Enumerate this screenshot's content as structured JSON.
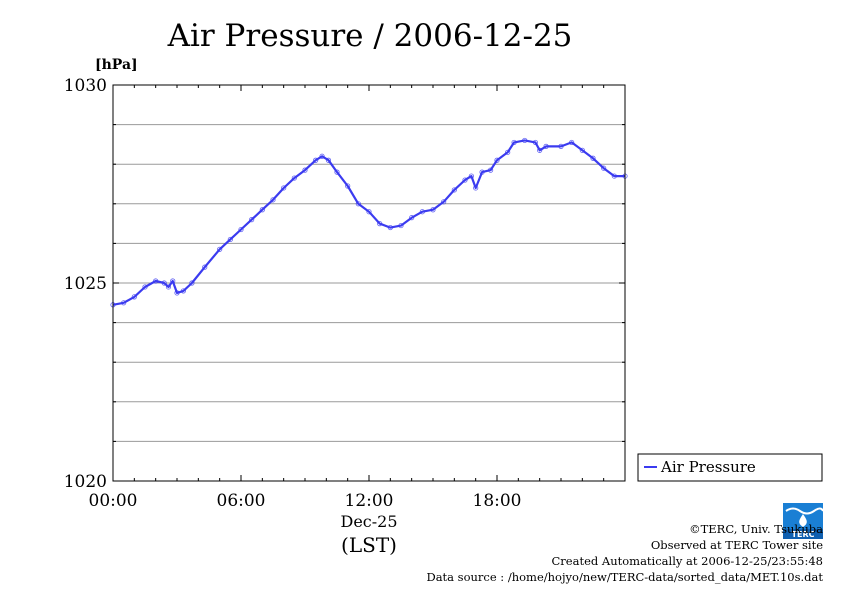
{
  "chart_data": {
    "type": "line",
    "title": "Air Pressure / 2006-12-25",
    "ylabel": "[hPa]",
    "ylim": [
      1020,
      1030
    ],
    "y_ticks": [
      "1020",
      "1025",
      "1030"
    ],
    "xlim": [
      0,
      24
    ],
    "x_ticks": [
      {
        "hour": 0,
        "label": "00:00"
      },
      {
        "hour": 6,
        "label": "06:00"
      },
      {
        "hour": 12,
        "label": "12:00"
      },
      {
        "hour": 18,
        "label": "18:00"
      }
    ],
    "x_date_label": "Dec-25",
    "x_unit_label": "(LST)",
    "grid": true,
    "legend_position": "right",
    "color": "#3b3bf0",
    "series": [
      {
        "name": "Air Pressure",
        "points": [
          [
            0.0,
            1024.45
          ],
          [
            0.5,
            1024.5
          ],
          [
            1.0,
            1024.65
          ],
          [
            1.5,
            1024.9
          ],
          [
            2.0,
            1025.05
          ],
          [
            2.4,
            1025.0
          ],
          [
            2.6,
            1024.9
          ],
          [
            2.8,
            1025.05
          ],
          [
            3.0,
            1024.75
          ],
          [
            3.3,
            1024.8
          ],
          [
            3.7,
            1025.0
          ],
          [
            4.3,
            1025.4
          ],
          [
            5.0,
            1025.85
          ],
          [
            5.5,
            1026.1
          ],
          [
            6.0,
            1026.35
          ],
          [
            6.5,
            1026.6
          ],
          [
            7.0,
            1026.85
          ],
          [
            7.5,
            1027.1
          ],
          [
            8.0,
            1027.4
          ],
          [
            8.5,
            1027.65
          ],
          [
            9.0,
            1027.85
          ],
          [
            9.5,
            1028.1
          ],
          [
            9.8,
            1028.2
          ],
          [
            10.1,
            1028.1
          ],
          [
            10.5,
            1027.8
          ],
          [
            11.0,
            1027.45
          ],
          [
            11.5,
            1027.0
          ],
          [
            12.0,
            1026.8
          ],
          [
            12.5,
            1026.5
          ],
          [
            13.0,
            1026.4
          ],
          [
            13.5,
            1026.45
          ],
          [
            14.0,
            1026.65
          ],
          [
            14.5,
            1026.8
          ],
          [
            15.0,
            1026.85
          ],
          [
            15.5,
            1027.05
          ],
          [
            16.0,
            1027.35
          ],
          [
            16.5,
            1027.6
          ],
          [
            16.8,
            1027.7
          ],
          [
            17.0,
            1027.4
          ],
          [
            17.3,
            1027.8
          ],
          [
            17.7,
            1027.85
          ],
          [
            18.0,
            1028.1
          ],
          [
            18.5,
            1028.3
          ],
          [
            18.8,
            1028.55
          ],
          [
            19.3,
            1028.6
          ],
          [
            19.8,
            1028.55
          ],
          [
            20.0,
            1028.35
          ],
          [
            20.3,
            1028.45
          ],
          [
            21.0,
            1028.45
          ],
          [
            21.5,
            1028.55
          ],
          [
            22.0,
            1028.35
          ],
          [
            22.5,
            1028.15
          ],
          [
            23.0,
            1027.9
          ],
          [
            23.5,
            1027.7
          ],
          [
            24.0,
            1027.7
          ]
        ]
      }
    ]
  },
  "credits": {
    "copyright": "©TERC, Univ. Tsukuba",
    "observed": "Observed at TERC Tower site",
    "created": "Created Automatically at 2006-12-25/23:55:48",
    "source": "Data source : /home/hojyo/new/TERC-data/sorted_data/MET.10s.dat",
    "logo_text": "TERC"
  }
}
